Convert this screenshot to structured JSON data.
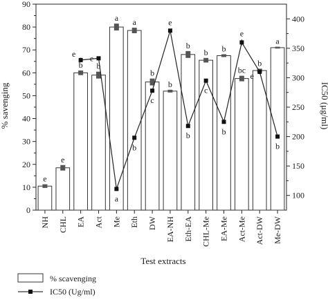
{
  "chart_data": {
    "type": "bar",
    "categories": [
      "NH",
      "CHL",
      "EA",
      "Act",
      "Me",
      "Eth",
      "DW",
      "EA-NH",
      "Eth-EA",
      "CHL-Me",
      "EA-Me",
      "Act-Me",
      "Act-DW",
      "Me-DW"
    ],
    "xlabel": "Test extracts",
    "ylabel": "% savenging",
    "y2label": "IC50 (μg/ml)",
    "ylim": [
      0,
      90
    ],
    "y2lim": [
      75,
      425
    ],
    "yticks": [
      "0",
      "10",
      "20",
      "30",
      "40",
      "50",
      "60",
      "70",
      "80",
      "90"
    ],
    "y2ticks": [
      "100",
      "150",
      "200",
      "250",
      "300",
      "350",
      "400"
    ],
    "legend_position": "bottom",
    "series": [
      {
        "name": "% scavenging",
        "kind": "bar",
        "values": [
          10.5,
          18.5,
          60,
          59,
          80,
          78.5,
          56,
          52,
          68,
          65.5,
          67.5,
          57.5,
          61,
          71
        ],
        "errors": [
          0.8,
          1.2,
          1.0,
          1.5,
          1.5,
          1.2,
          1.5,
          0.6,
          1.5,
          1.0,
          0.6,
          1.2,
          0.8,
          0.4
        ],
        "labels": [
          "e",
          "e",
          "b",
          "b",
          "a",
          "a",
          "b",
          "b",
          "b",
          "b",
          "b",
          "bc",
          "b",
          "a"
        ]
      },
      {
        "name": "IC50 (Ug/ml)",
        "kind": "line",
        "axis": "right",
        "values": [
          null,
          null,
          330,
          333,
          111,
          198,
          278,
          380,
          218,
          295,
          225,
          360,
          310,
          200
        ],
        "errors": [
          0,
          0,
          4,
          3,
          3,
          2,
          3,
          2,
          2,
          2,
          2,
          5,
          4,
          2
        ],
        "labels": [
          "",
          "",
          "e",
          "e",
          "a",
          "b",
          "c",
          "e",
          "b",
          "c",
          "b",
          "e",
          "e",
          "b"
        ]
      }
    ]
  }
}
